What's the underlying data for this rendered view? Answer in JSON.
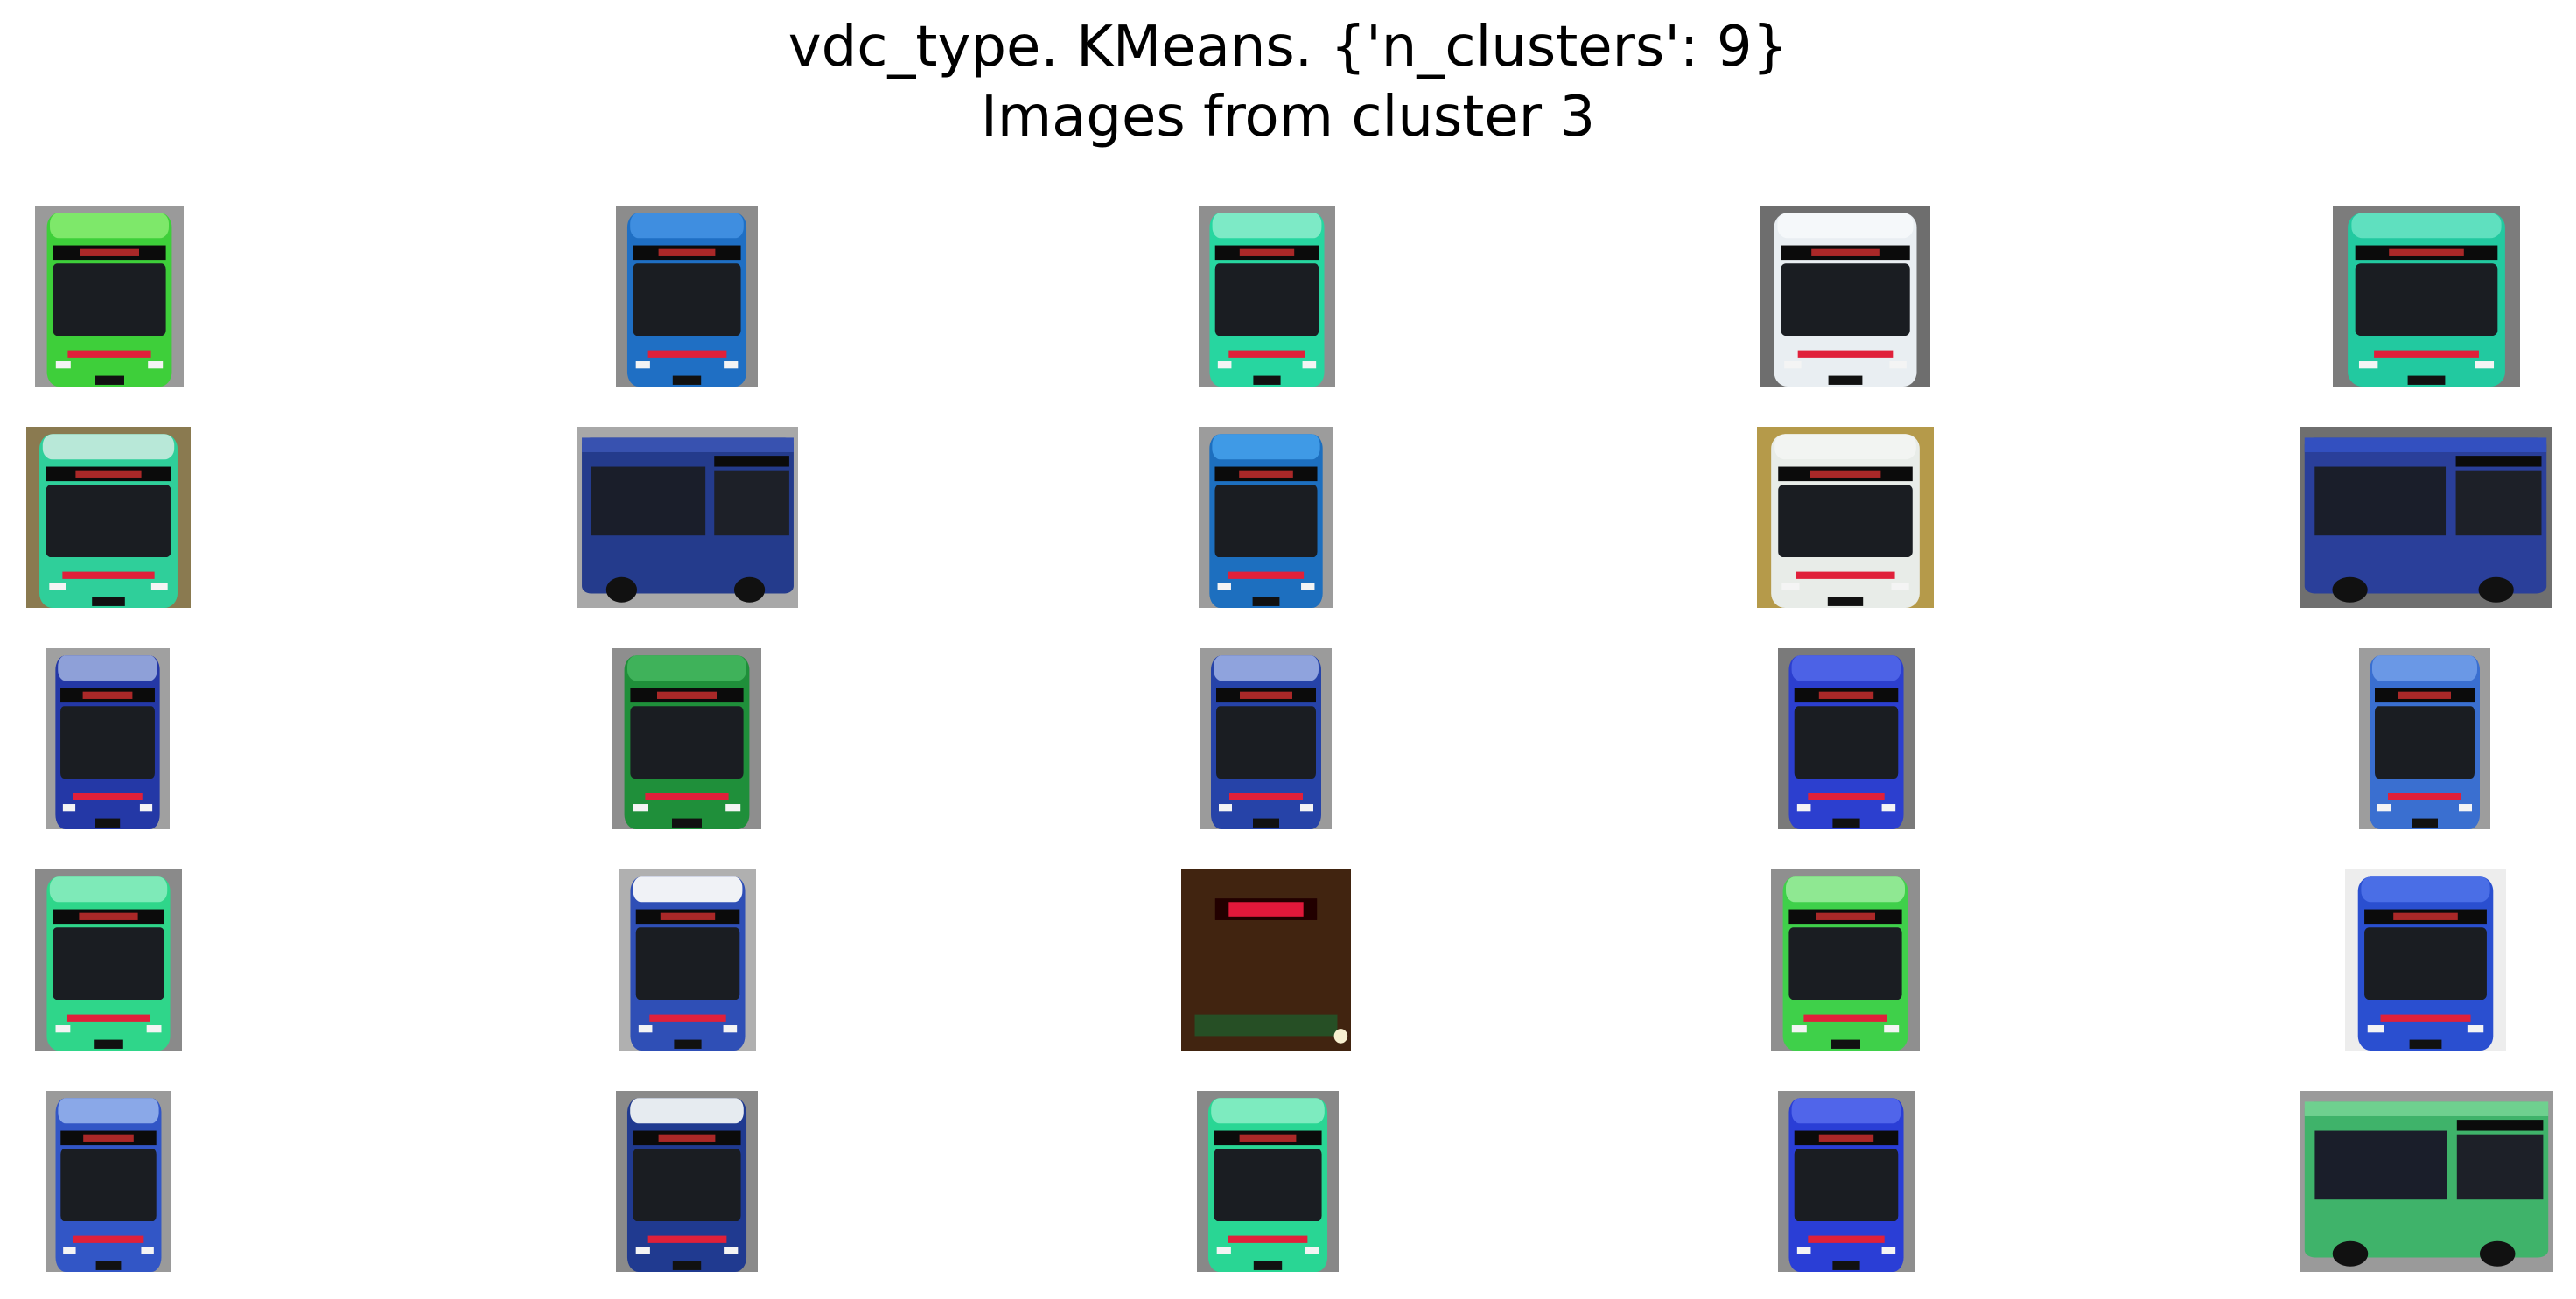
{
  "figure": {
    "title_line1": "vdc_type. KMeans. {'n_clusters': 9}",
    "title_line2": "Images from cluster 3"
  },
  "grid": {
    "rows": 5,
    "cols": 5,
    "images": [
      {
        "kind": "bus-front",
        "body": "#3ecf3a",
        "roof": "#7ee86a",
        "bg": "#9a9a9a"
      },
      {
        "kind": "bus-front",
        "body": "#1f6fc4",
        "roof": "#3f8ee0",
        "bg": "#8c8c8c"
      },
      {
        "kind": "bus-front",
        "body": "#27d6a0",
        "roof": "#7deac6",
        "bg": "#8f8f8f"
      },
      {
        "kind": "bus-front",
        "body": "#e9eef2",
        "roof": "#f5f8fa",
        "bg": "#6e6e6e"
      },
      {
        "kind": "bus-front",
        "body": "#22c9a0",
        "roof": "#5fe0bf",
        "bg": "#7c7c7c"
      },
      {
        "kind": "bus-front",
        "body": "#2fcf9a",
        "roof": "#b8e8d8",
        "bg": "#8a7a50"
      },
      {
        "kind": "bus-side",
        "body": "#243b8c",
        "roof": "#3852b0",
        "bg": "#a8a8a8"
      },
      {
        "kind": "bus-front",
        "body": "#1d6fbf",
        "roof": "#3f9ae6",
        "bg": "#9c9c9c"
      },
      {
        "kind": "bus-front",
        "body": "#e8ece8",
        "roof": "#f2f4f2",
        "bg": "#b59a4a"
      },
      {
        "kind": "bus-side",
        "body": "#2a3f9a",
        "roof": "#3350c0",
        "bg": "#6f6f6f"
      },
      {
        "kind": "bus-front",
        "body": "#2438a6",
        "roof": "#8ea0d8",
        "bg": "#a0a0a0"
      },
      {
        "kind": "bus-front",
        "body": "#1f8f3a",
        "roof": "#3fb25a",
        "bg": "#8e8e8e"
      },
      {
        "kind": "bus-front",
        "body": "#2643a8",
        "roof": "#8fa3dd",
        "bg": "#9b9b9b"
      },
      {
        "kind": "bus-front",
        "body": "#2c3fcf",
        "roof": "#4c62e6",
        "bg": "#7a7a7a"
      },
      {
        "kind": "bus-front",
        "body": "#3a6fd0",
        "roof": "#6a98e6",
        "bg": "#9d9d9d"
      },
      {
        "kind": "bus-front",
        "body": "#2fd68a",
        "roof": "#7eeab8",
        "bg": "#8a8a8a"
      },
      {
        "kind": "bus-front",
        "body": "#2f4fb6",
        "roof": "#f0f2f6",
        "bg": "#b0b0b0"
      },
      {
        "kind": "night",
        "body": "#4b2a12",
        "roof": "#e1183a",
        "bg": "#2a1a0c"
      },
      {
        "kind": "bus-front",
        "body": "#3fd04a",
        "roof": "#8fe892",
        "bg": "#8f8f8f"
      },
      {
        "kind": "bus-front",
        "body": "#2a4fd0",
        "roof": "#4a6ee6",
        "bg": "#ededed"
      },
      {
        "kind": "bus-front",
        "body": "#3256c6",
        "roof": "#8aa8e8",
        "bg": "#9a9a9a"
      },
      {
        "kind": "bus-front",
        "body": "#203a90",
        "roof": "#e6ebf0",
        "bg": "#8a8a8a"
      },
      {
        "kind": "bus-front",
        "body": "#29d694",
        "roof": "#7debbf",
        "bg": "#888888"
      },
      {
        "kind": "bus-front",
        "body": "#2a3ed6",
        "roof": "#5065ea",
        "bg": "#8e8e8e"
      },
      {
        "kind": "bus-side",
        "body": "#3fb36a",
        "roof": "#6fd08f",
        "bg": "#9a9a9a"
      }
    ]
  }
}
